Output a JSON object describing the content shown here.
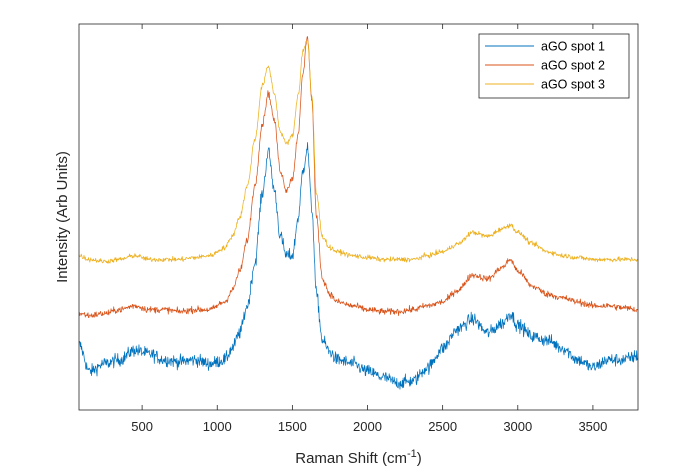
{
  "chart_data": {
    "type": "line",
    "title": "",
    "xlabel": "Raman Shift (cm",
    "xlabel_superscript": "-1",
    "xlabel_suffix": ")",
    "ylabel": "Intensity (Arb Units)",
    "xlim": [
      80,
      3800
    ],
    "ylim": [
      0,
      1
    ],
    "xticks": [
      500,
      1000,
      1500,
      2000,
      2500,
      3000,
      3500
    ],
    "yticks_shown": false,
    "legend_position": "top-right",
    "grid": false,
    "x": [
      80,
      150,
      250,
      350,
      450,
      550,
      650,
      750,
      850,
      950,
      1050,
      1100,
      1150,
      1200,
      1250,
      1300,
      1340,
      1380,
      1420,
      1460,
      1500,
      1540,
      1570,
      1600,
      1630,
      1660,
      1700,
      1750,
      1800,
      1900,
      2000,
      2100,
      2200,
      2300,
      2400,
      2500,
      2600,
      2700,
      2800,
      2900,
      2950,
      3000,
      3100,
      3200,
      3300,
      3400,
      3500,
      3600,
      3700,
      3800
    ],
    "series": [
      {
        "name": "aGO spot 1",
        "color": "#0072BD",
        "noise": 0.016,
        "y": [
          0.17,
          0.1,
          0.12,
          0.13,
          0.155,
          0.145,
          0.13,
          0.125,
          0.13,
          0.12,
          0.13,
          0.16,
          0.2,
          0.27,
          0.38,
          0.56,
          0.67,
          0.57,
          0.45,
          0.4,
          0.4,
          0.5,
          0.62,
          0.68,
          0.52,
          0.3,
          0.18,
          0.15,
          0.13,
          0.12,
          0.1,
          0.085,
          0.07,
          0.075,
          0.11,
          0.16,
          0.21,
          0.235,
          0.2,
          0.225,
          0.25,
          0.22,
          0.19,
          0.18,
          0.16,
          0.13,
          0.11,
          0.13,
          0.13,
          0.14
        ]
      },
      {
        "name": "aGO spot 2",
        "color": "#D95319",
        "noise": 0.008,
        "y": [
          0.25,
          0.245,
          0.25,
          0.26,
          0.27,
          0.26,
          0.26,
          0.255,
          0.26,
          0.26,
          0.28,
          0.31,
          0.36,
          0.44,
          0.58,
          0.74,
          0.82,
          0.75,
          0.62,
          0.57,
          0.6,
          0.72,
          0.87,
          0.97,
          0.8,
          0.5,
          0.34,
          0.3,
          0.28,
          0.27,
          0.26,
          0.255,
          0.255,
          0.26,
          0.27,
          0.28,
          0.31,
          0.35,
          0.34,
          0.37,
          0.39,
          0.36,
          0.32,
          0.3,
          0.29,
          0.28,
          0.27,
          0.27,
          0.265,
          0.26
        ]
      },
      {
        "name": "aGO spot 3",
        "color": "#EDB120",
        "noise": 0.006,
        "y": [
          0.4,
          0.39,
          0.385,
          0.39,
          0.4,
          0.39,
          0.39,
          0.39,
          0.395,
          0.4,
          0.42,
          0.45,
          0.5,
          0.58,
          0.7,
          0.84,
          0.89,
          0.82,
          0.72,
          0.69,
          0.71,
          0.82,
          0.93,
          0.96,
          0.81,
          0.56,
          0.45,
          0.42,
          0.41,
          0.4,
          0.395,
          0.39,
          0.39,
          0.39,
          0.4,
          0.41,
          0.43,
          0.46,
          0.45,
          0.47,
          0.48,
          0.46,
          0.43,
          0.41,
          0.4,
          0.395,
          0.39,
          0.39,
          0.39,
          0.39
        ]
      }
    ]
  }
}
